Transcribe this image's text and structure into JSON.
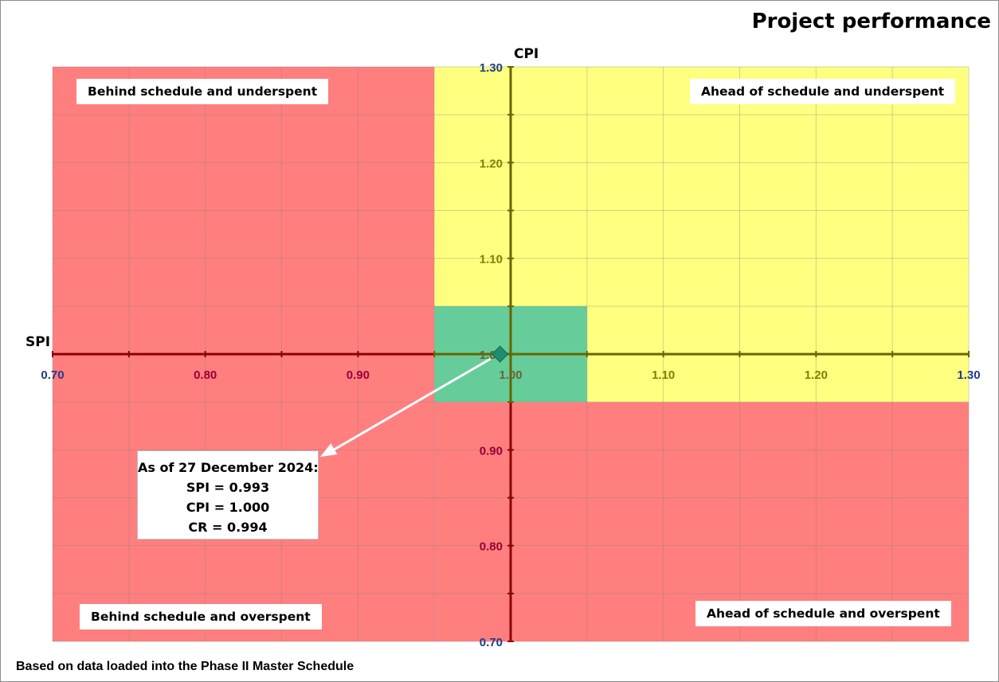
{
  "title": "Project performance",
  "footnote": "Based on data loaded into the Phase II Master Schedule",
  "quadrants": {
    "top_left": "Behind schedule and underspent",
    "top_right": "Ahead of schedule and underspent",
    "bottom_left": "Behind schedule and overspent",
    "bottom_right": "Ahead of schedule and overspent"
  },
  "callout": {
    "line1": "As of 27 December 2024:",
    "line2": "SPI = 0.993",
    "line3": "CPI = 1.000",
    "line4": "CR = 0.994"
  },
  "colors": {
    "red_zone": "#ff7f7f",
    "yellow_zone": "#ffff80",
    "green_zone": "#66cc99",
    "axis": "#990000",
    "marker": "#1f8c6e",
    "tick_blue": "#1f3c88",
    "tick_red": "#990033",
    "tick_olive": "#7f7f00",
    "tick_dark": "#666633"
  },
  "chart_data": {
    "type": "scatter",
    "xlabel": "SPI",
    "ylabel": "CPI",
    "xlim": [
      0.7,
      1.3
    ],
    "ylim": [
      0.7,
      1.3
    ],
    "x_ticks": [
      "0.70",
      "0.80",
      "0.90",
      "1.00",
      "1.10",
      "1.20",
      "1.30"
    ],
    "y_ticks": [
      "0.70",
      "0.80",
      "0.90",
      "1.00",
      "1.10",
      "1.20",
      "1.30"
    ],
    "grid": true,
    "zones": [
      {
        "color": "red",
        "x": [
          0.7,
          0.95
        ],
        "y": [
          0.7,
          1.3
        ]
      },
      {
        "color": "red",
        "x": [
          0.95,
          1.3
        ],
        "y": [
          0.7,
          0.95
        ]
      },
      {
        "color": "yellow",
        "x": [
          0.95,
          1.3
        ],
        "y": [
          0.95,
          1.3
        ]
      },
      {
        "color": "green",
        "x": [
          0.95,
          1.05
        ],
        "y": [
          0.95,
          1.05
        ]
      }
    ],
    "points": [
      {
        "x": 0.993,
        "y": 1.0
      }
    ]
  }
}
